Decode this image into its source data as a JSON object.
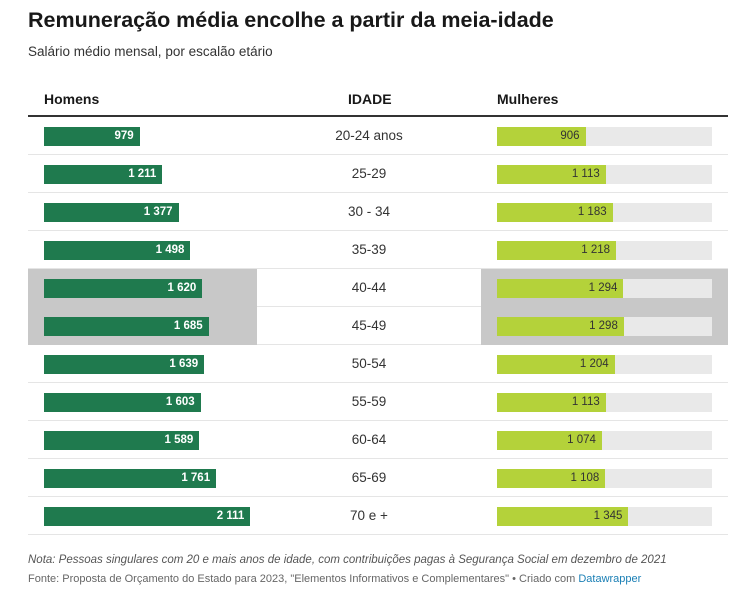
{
  "title": "Remuneração média encolhe a partir da meia-idade",
  "subtitle": "Salário médio mensal, por escalão etário",
  "headers": {
    "men": "Homens",
    "age": "IDADE",
    "women": "Mulheres"
  },
  "chart_data": {
    "type": "bar",
    "title": "Remuneração média encolhe a partir da meia-idade",
    "subtitle": "Salário médio mensal, por escalão etário",
    "xmax": 2200,
    "categories": [
      "20-24 anos",
      "25-29",
      "30 - 34",
      "35-39",
      "40-44",
      "45-49",
      "50-54",
      "55-59",
      "60-64",
      "65-69",
      "70 e +"
    ],
    "highlighted": [
      "40-44",
      "45-49"
    ],
    "colors": {
      "men": "#1f7a4e",
      "women": "#b4d23a",
      "track": "#e9e9e9",
      "highlight": "#c8c8c8"
    },
    "series": [
      {
        "name": "Homens",
        "values": [
          979,
          1211,
          1377,
          1498,
          1620,
          1685,
          1639,
          1603,
          1589,
          1761,
          2111
        ],
        "labels": [
          "979",
          "1 211",
          "1 377",
          "1 498",
          "1 620",
          "1 685",
          "1 639",
          "1 603",
          "1 589",
          "1 761",
          "2 111"
        ]
      },
      {
        "name": "Mulheres",
        "values": [
          906,
          1113,
          1183,
          1218,
          1294,
          1298,
          1204,
          1113,
          1074,
          1108,
          1345
        ],
        "labels": [
          "906",
          "1 113",
          "1 183",
          "1 218",
          "1 294",
          "1 298",
          "1 204",
          "1 113",
          "1 074",
          "1 108",
          "1 345"
        ]
      }
    ]
  },
  "note": "Nota: Pessoas singulares com 20 e mais anos de idade, com contribuições pagas à Segurança Social em dezembro de 2021",
  "source": "Fonte: Proposta de Orçamento do Estado para 2023, \"Elementos Informativos e Complementares\" • Criado com",
  "credit": "Datawrapper"
}
